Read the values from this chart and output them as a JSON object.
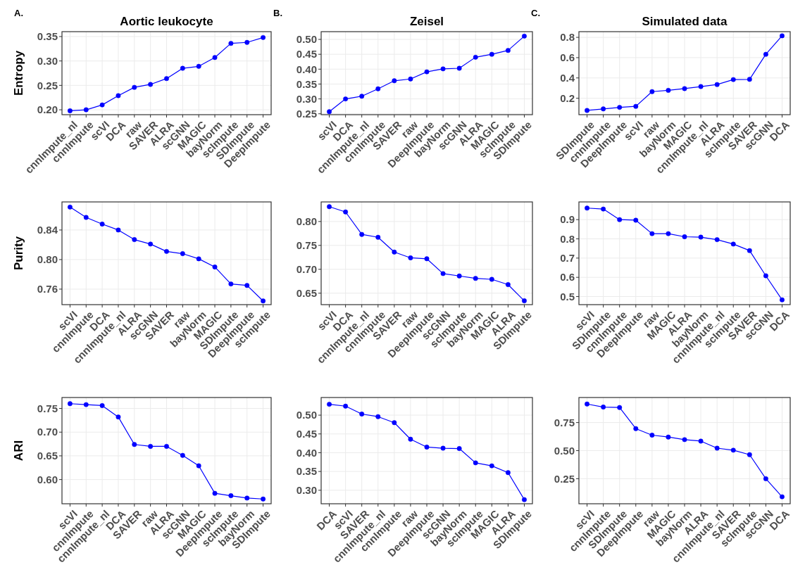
{
  "chart_data": [
    {
      "type": "line",
      "title": "Aortic leukocyte",
      "ylabel": "Entropy",
      "annotations": [
        "A."
      ],
      "categories": [
        "cnnImpute_nl",
        "cnnImpute",
        "scVI",
        "DCA",
        "raw",
        "SAVER",
        "ALRA",
        "scGNN",
        "MAGIC",
        "bayNorm",
        "scImpute",
        "SDImpute",
        "DeepImpute"
      ],
      "values": [
        0.198,
        0.2,
        0.21,
        0.229,
        0.246,
        0.252,
        0.264,
        0.285,
        0.289,
        0.307,
        0.336,
        0.338,
        0.348
      ],
      "color": "#0000ff",
      "ylim": [
        0.19,
        0.36
      ],
      "yticks": [
        {
          "value": 0.2,
          "label": "0.20"
        },
        0.25,
        {
          "value": 0.3,
          "label": "0.30"
        },
        0.35
      ],
      "grid": true,
      "marker": "circle",
      "line_style": "solid"
    },
    {
      "type": "line",
      "title": "Zeisel",
      "annotations": [
        "B."
      ],
      "categories": [
        "scVI",
        "DCA",
        "cnnImpute_nl",
        "cnnImpute",
        "SAVER",
        "raw",
        "DeepImpute",
        "bayNorm",
        "scGNN",
        "ALRA",
        "MAGIC",
        "scImpute",
        "SDImpute"
      ],
      "values": [
        0.257,
        0.3,
        0.309,
        0.334,
        0.361,
        0.367,
        0.391,
        0.401,
        0.403,
        0.44,
        0.45,
        0.463,
        0.511
      ],
      "color": "#0000ff",
      "ylim": [
        0.247,
        0.526
      ],
      "yticks": [
        0.25,
        {
          "value": 0.3,
          "label": "0.30"
        },
        0.35,
        {
          "value": 0.4,
          "label": "0.40"
        },
        0.45,
        {
          "value": 0.5,
          "label": "0.50"
        }
      ],
      "grid": true,
      "marker": "circle",
      "line_style": "solid"
    },
    {
      "type": "line",
      "title": "Simulated data",
      "annotations": [
        "C."
      ],
      "categories": [
        "SDImpute",
        "cnnImpute",
        "DeepImpute",
        "scVI",
        "raw",
        "bayNorm",
        "MAGIC",
        "cnnImpute_nl",
        "ALRA",
        "scImpute",
        "SAVER",
        "scGNN",
        "DCA"
      ],
      "values": [
        0.08,
        0.095,
        0.11,
        0.12,
        0.265,
        0.278,
        0.295,
        0.315,
        0.335,
        0.384,
        0.386,
        0.633,
        0.815
      ],
      "color": "#0000ff",
      "ylim": [
        0.038,
        0.856
      ],
      "yticks": [
        0.2,
        0.4,
        0.6,
        0.8
      ],
      "grid": true,
      "marker": "circle",
      "line_style": "solid"
    },
    {
      "type": "line",
      "ylabel": "Purity",
      "categories": [
        "scVI",
        "cnnImpute",
        "DCA",
        "cnnImpute_nl",
        "ALRA",
        "scGNN",
        "SAVER",
        "raw",
        "bayNorm",
        "MAGIC",
        "SDImpute",
        "DeepImpute",
        "scImpute"
      ],
      "values": [
        0.871,
        0.857,
        0.848,
        0.84,
        0.827,
        0.821,
        0.811,
        0.808,
        0.801,
        0.79,
        0.767,
        0.765,
        0.744
      ],
      "color": "#0000ff",
      "ylim": [
        0.739,
        0.878
      ],
      "yticks": [
        0.76,
        {
          "value": 0.8,
          "label": "0.80"
        },
        0.84
      ],
      "grid": true,
      "marker": "circle",
      "line_style": "solid"
    },
    {
      "type": "line",
      "categories": [
        "scVI",
        "DCA",
        "cnnImpute_nl",
        "cnnImpute",
        "SAVER",
        "raw",
        "DeepImpute",
        "scGNN",
        "scImpute",
        "bayNorm",
        "MAGIC",
        "ALRA",
        "SDImpute"
      ],
      "values": [
        0.831,
        0.82,
        0.773,
        0.767,
        0.736,
        0.724,
        0.722,
        0.691,
        0.686,
        0.681,
        0.679,
        0.668,
        0.634
      ],
      "color": "#0000ff",
      "ylim": [
        0.626,
        0.841
      ],
      "yticks": [
        0.65,
        {
          "value": 0.7,
          "label": "0.70"
        },
        0.75,
        {
          "value": 0.8,
          "label": "0.80"
        }
      ],
      "grid": true,
      "marker": "circle",
      "line_style": "solid"
    },
    {
      "type": "line",
      "categories": [
        "scVI",
        "SDImpute",
        "cnnImpute",
        "DeepImpute",
        "raw",
        "MAGIC",
        "ALRA",
        "bayNorm",
        "cnnImpute_nl",
        "scImpute",
        "SAVER",
        "scGNN",
        "DCA"
      ],
      "values": [
        0.96,
        0.955,
        0.9,
        0.897,
        0.827,
        0.827,
        0.811,
        0.809,
        0.796,
        0.773,
        0.739,
        0.608,
        0.483
      ],
      "color": "#0000ff",
      "ylim": [
        0.458,
        0.992
      ],
      "yticks": [
        0.5,
        0.6,
        0.7,
        0.8,
        0.9
      ],
      "grid": true,
      "marker": "circle",
      "line_style": "solid"
    },
    {
      "type": "line",
      "ylabel": "ARI",
      "categories": [
        "scVI",
        "cnnImpute",
        "cnnImpute_nl",
        "DCA",
        "SAVER",
        "raw",
        "ALRA",
        "scGNN",
        "MAGIC",
        "DeepImpute",
        "scImpute",
        "bayNorm",
        "SDImpute"
      ],
      "values": [
        0.76,
        0.758,
        0.756,
        0.732,
        0.674,
        0.67,
        0.67,
        0.651,
        0.629,
        0.571,
        0.566,
        0.561,
        0.559
      ],
      "color": "#0000ff",
      "ylim": [
        0.549,
        0.773
      ],
      "yticks": [
        {
          "value": 0.6,
          "label": "0.60"
        },
        0.65,
        {
          "value": 0.7,
          "label": "0.70"
        },
        0.75
      ],
      "grid": true,
      "marker": "circle",
      "line_style": "solid"
    },
    {
      "type": "line",
      "categories": [
        "DCA",
        "scVI",
        "SAVER",
        "cnnImpute_nl",
        "cnnImpute",
        "raw",
        "DeepImpute",
        "scGNN",
        "bayNorm",
        "scImpute",
        "MAGIC",
        "ALRA",
        "SDImpute"
      ],
      "values": [
        0.529,
        0.524,
        0.503,
        0.496,
        0.48,
        0.436,
        0.415,
        0.412,
        0.411,
        0.373,
        0.365,
        0.347,
        0.275
      ],
      "color": "#0000ff",
      "ylim": [
        0.264,
        0.547
      ],
      "yticks": [
        {
          "value": 0.3,
          "label": "0.30"
        },
        0.35,
        {
          "value": 0.4,
          "label": "0.40"
        },
        0.45,
        {
          "value": 0.5,
          "label": "0.50"
        }
      ],
      "grid": true,
      "marker": "circle",
      "line_style": "solid"
    },
    {
      "type": "line",
      "categories": [
        "scVI",
        "cnnImpute",
        "SDImpute",
        "DeepImpute",
        "raw",
        "MAGIC",
        "bayNorm",
        "ALRA",
        "cnnImpute_nl",
        "SAVER",
        "scImpute",
        "scGNN",
        "DCA"
      ],
      "values": [
        0.915,
        0.888,
        0.884,
        0.696,
        0.638,
        0.621,
        0.598,
        0.585,
        0.522,
        0.504,
        0.464,
        0.25,
        0.089
      ],
      "color": "#0000ff",
      "ylim": [
        0.027,
        0.973
      ],
      "yticks": [
        0.25,
        {
          "value": 0.5,
          "label": "0.50"
        },
        0.75
      ],
      "grid": true,
      "marker": "circle",
      "line_style": "solid"
    }
  ]
}
